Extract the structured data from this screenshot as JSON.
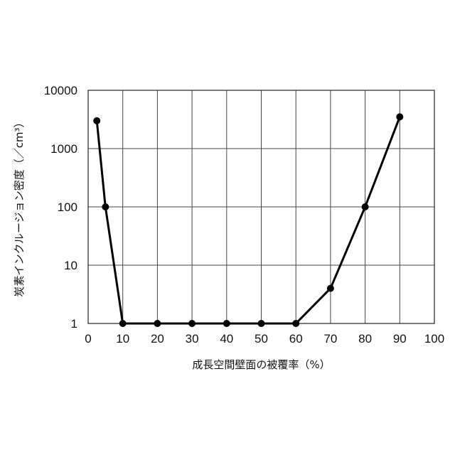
{
  "chart_data": {
    "type": "line",
    "xlabel": "成長空間壁面の被覆率（%）",
    "ylabel": "炭素インクルージョン密度（／cm³）",
    "x_scale": "linear",
    "y_scale": "log",
    "xlim": [
      0,
      100
    ],
    "ylim": [
      1,
      10000
    ],
    "x_ticks": [
      "0",
      "10",
      "20",
      "30",
      "40",
      "50",
      "60",
      "70",
      "80",
      "90",
      "100"
    ],
    "y_ticks": [
      "1",
      "10",
      "100",
      "1000",
      "10000"
    ],
    "grid": true,
    "legend": "none",
    "series": [
      {
        "x": [
          2.5,
          5,
          10,
          20,
          30,
          40,
          50,
          60,
          70,
          80,
          90
        ],
        "y": [
          3000,
          100,
          1,
          1,
          1,
          1,
          1,
          1,
          4,
          100,
          3500
        ]
      }
    ]
  },
  "colors": {
    "line": "#000000",
    "marker": "#000000",
    "grid": "#444444"
  }
}
